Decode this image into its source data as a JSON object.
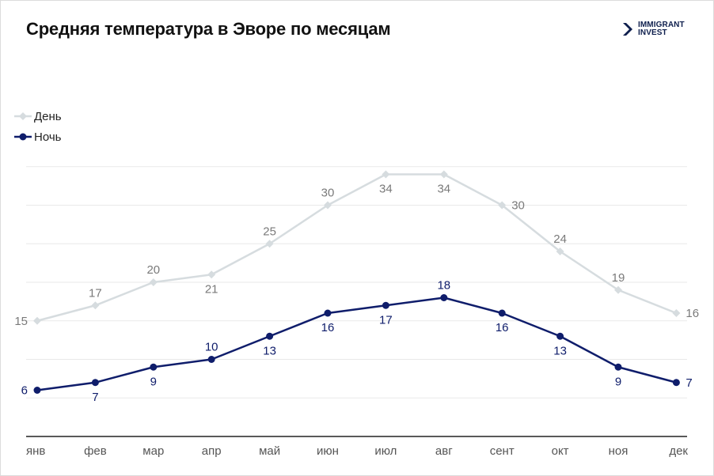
{
  "title": "Средняя температура в Эворе по месяцам",
  "brand": {
    "line1": "IMMIGRANT",
    "line2": "INVEST"
  },
  "chart_data": {
    "type": "line",
    "title": "Средняя температура в Эворе по месяцам",
    "categories": [
      "янв",
      "фев",
      "мар",
      "апр",
      "май",
      "июн",
      "июл",
      "авг",
      "сент",
      "окт",
      "ноя",
      "дек"
    ],
    "series": [
      {
        "name": "День",
        "values": [
          15,
          17,
          20,
          21,
          25,
          30,
          34,
          34,
          30,
          24,
          19,
          16
        ],
        "color": "#d6dcdf",
        "marker": "diamond",
        "label_color": "#7a7a7a"
      },
      {
        "name": "Ночь",
        "values": [
          6,
          7,
          9,
          10,
          13,
          16,
          17,
          18,
          16,
          13,
          9,
          7
        ],
        "color": "#0f1d6b",
        "marker": "circle",
        "label_color": "#0f1d6b"
      }
    ],
    "ylim": [
      0,
      35
    ],
    "grid": true,
    "legend_position": "top-left",
    "xlabel": "",
    "ylabel": ""
  }
}
